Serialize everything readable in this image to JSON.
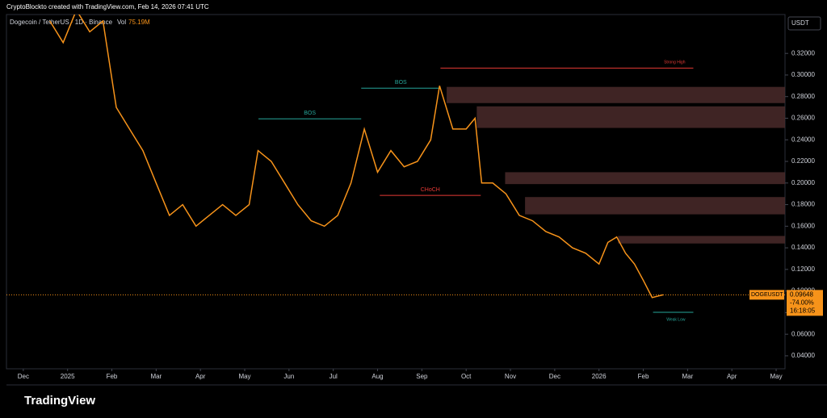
{
  "header": {
    "credit": "CryptoBlockto created with TradingView.com, Feb 14, 2026 07:41 UTC",
    "symbol_line": "Dogecoin / TetherUS · 1D · Binance",
    "vol_label": "Vol",
    "vol_value": "75.19M",
    "currency": "USDT"
  },
  "chart_data": {
    "type": "line",
    "color": "#f7931a",
    "x": [
      0.6,
      0.9,
      1.2,
      1.5,
      1.8,
      2.1,
      2.4,
      2.7,
      3.0,
      3.3,
      3.6,
      3.9,
      4.2,
      4.5,
      4.8,
      5.1,
      5.3,
      5.6,
      5.9,
      6.2,
      6.5,
      6.8,
      7.1,
      7.4,
      7.7,
      8.0,
      8.3,
      8.6,
      8.9,
      9.2,
      9.4,
      9.7,
      10.0,
      10.2,
      10.35,
      10.6,
      10.9,
      11.2,
      11.5,
      11.8,
      12.1,
      12.4,
      12.7,
      13.0,
      13.2,
      13.4,
      13.6,
      13.8,
      14.0,
      14.2,
      14.45
    ],
    "values": [
      0.35,
      0.33,
      0.36,
      0.34,
      0.35,
      0.27,
      0.25,
      0.23,
      0.2,
      0.17,
      0.18,
      0.16,
      0.17,
      0.18,
      0.17,
      0.18,
      0.23,
      0.22,
      0.2,
      0.18,
      0.165,
      0.16,
      0.17,
      0.2,
      0.25,
      0.21,
      0.23,
      0.215,
      0.22,
      0.24,
      0.29,
      0.25,
      0.25,
      0.26,
      0.2,
      0.2,
      0.19,
      0.17,
      0.165,
      0.155,
      0.15,
      0.14,
      0.135,
      0.125,
      0.145,
      0.15,
      0.135,
      0.125,
      0.11,
      0.094,
      0.0965
    ],
    "xlim": [
      -0.38,
      17.2
    ],
    "xticks": [
      {
        "value": 0,
        "label": "Dec"
      },
      {
        "value": 1,
        "label": "2025"
      },
      {
        "value": 2,
        "label": "Feb"
      },
      {
        "value": 3,
        "label": "Mar"
      },
      {
        "value": 4,
        "label": "Apr"
      },
      {
        "value": 5,
        "label": "May"
      },
      {
        "value": 6,
        "label": "Jun"
      },
      {
        "value": 7,
        "label": "Jul"
      },
      {
        "value": 8,
        "label": "Aug"
      },
      {
        "value": 9,
        "label": "Sep"
      },
      {
        "value": 10,
        "label": "Oct"
      },
      {
        "value": 11,
        "label": "Nov"
      },
      {
        "value": 12,
        "label": "Dec"
      },
      {
        "value": 13,
        "label": "2026"
      },
      {
        "value": 14,
        "label": "Feb"
      },
      {
        "value": 15,
        "label": "Mar"
      },
      {
        "value": 16,
        "label": "Apr"
      },
      {
        "value": 17,
        "label": "May"
      }
    ],
    "ylim": [
      0.028,
      0.356
    ],
    "yticks": [
      {
        "value": 0.04,
        "label": "0.04000"
      },
      {
        "value": 0.06,
        "label": "0.06000"
      },
      {
        "value": 0.08,
        "label": "0.08000"
      },
      {
        "value": 0.1,
        "label": "0.10000"
      },
      {
        "value": 0.12,
        "label": "0.12000"
      },
      {
        "value": 0.14,
        "label": "0.14000"
      },
      {
        "value": 0.16,
        "label": "0.16000"
      },
      {
        "value": 0.18,
        "label": "0.18000"
      },
      {
        "value": 0.2,
        "label": "0.20000"
      },
      {
        "value": 0.22,
        "label": "0.22000"
      },
      {
        "value": 0.24,
        "label": "0.24000"
      },
      {
        "value": 0.26,
        "label": "0.26000"
      },
      {
        "value": 0.28,
        "label": "0.28000"
      },
      {
        "value": 0.3,
        "label": "0.30000"
      },
      {
        "value": 0.32,
        "label": "0.32000"
      }
    ],
    "zones": [
      {
        "start": 9.56,
        "low": 0.274,
        "high": 0.289
      },
      {
        "start": 10.24,
        "low": 0.251,
        "high": 0.271
      },
      {
        "start": 10.88,
        "low": 0.199,
        "high": 0.21
      },
      {
        "start": 11.33,
        "low": 0.171,
        "high": 0.187
      },
      {
        "start": 13.43,
        "low": 0.144,
        "high": 0.151
      }
    ],
    "levels": [
      {
        "text": "Strong High",
        "value": 0.3064,
        "from": 9.42,
        "to": 15.13,
        "color": "#e53935"
      },
      {
        "text": "BOS",
        "value": 0.2594,
        "from": 5.31,
        "to": 7.63,
        "color": "#26a69a"
      },
      {
        "text": "BOS",
        "value": 0.2878,
        "from": 7.63,
        "to": 9.42,
        "color": "#26a69a"
      },
      {
        "text": "CHoCH",
        "value": 0.1885,
        "from": 8.05,
        "to": 10.33,
        "color": "#e53935"
      },
      {
        "text": "Weak Low",
        "value": 0.0803,
        "from": 14.22,
        "to": 15.13,
        "color": "#26a69a"
      }
    ],
    "last": {
      "symbol": "DOGEUSDT",
      "value": 0.09648,
      "change": "-74.00%",
      "countdown": "16:18:05"
    }
  },
  "footer": {
    "brand": "TradingView"
  }
}
